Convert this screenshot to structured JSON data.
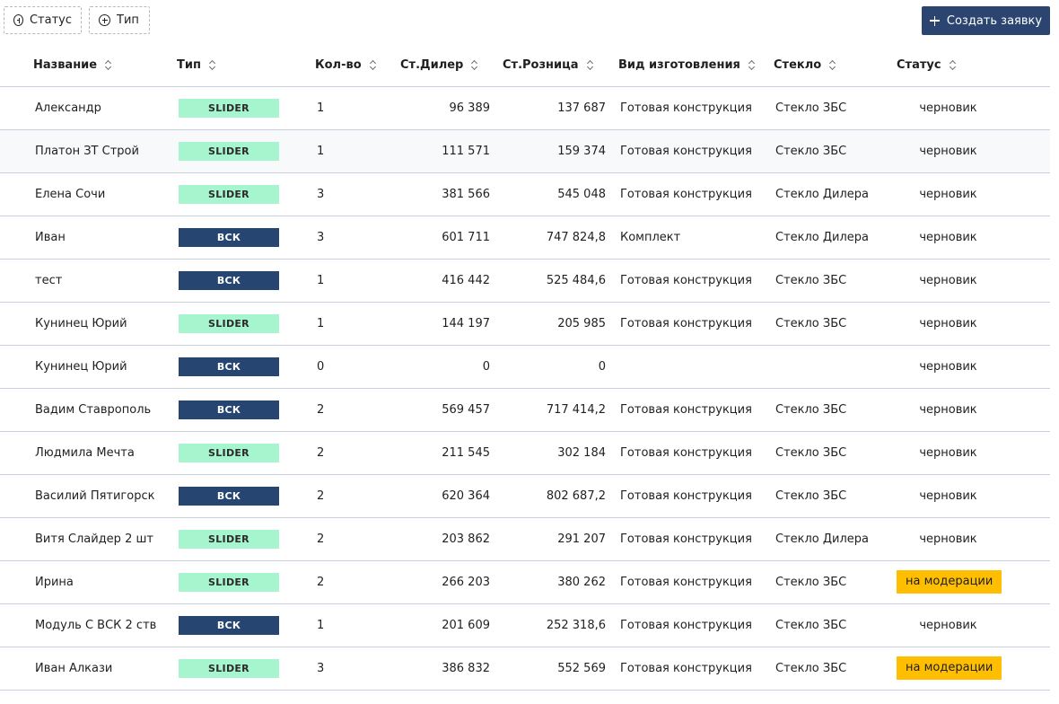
{
  "toolbar": {
    "filter_status_label": "Статус",
    "filter_type_label": "Тип",
    "create_label": "Создать заявку"
  },
  "columns": {
    "name": "Название",
    "type": "Тип",
    "qty": "Кол-во",
    "dealer": "Ст.Дилер",
    "retail": "Ст.Розница",
    "kind": "Вид изготовления",
    "glass": "Стекло",
    "status": "Статус"
  },
  "rows": [
    {
      "name": "Александр",
      "type": "SLIDER",
      "qty": "1",
      "dealer": "96 389",
      "retail": "137 687",
      "kind": "Готовая конструкция",
      "glass": "Стекло ЗБС",
      "status": "черновик"
    },
    {
      "name": "Платон ЗТ Строй",
      "type": "SLIDER",
      "qty": "1",
      "dealer": "111 571",
      "retail": "159 374",
      "kind": "Готовая конструкция",
      "glass": "Стекло ЗБС",
      "status": "черновик"
    },
    {
      "name": "Елена Сочи",
      "type": "SLIDER",
      "qty": "3",
      "dealer": "381 566",
      "retail": "545 048",
      "kind": "Готовая конструкция",
      "glass": "Стекло Дилера",
      "status": "черновик"
    },
    {
      "name": "Иван",
      "type": "ВСК",
      "qty": "3",
      "dealer": "601 711",
      "retail": "747 824,8",
      "kind": "Комплект",
      "glass": "Стекло Дилера",
      "status": "черновик"
    },
    {
      "name": "тест",
      "type": "ВСК",
      "qty": "1",
      "dealer": "416 442",
      "retail": "525 484,6",
      "kind": "Готовая конструкция",
      "glass": "Стекло ЗБС",
      "status": "черновик"
    },
    {
      "name": "Кунинец Юрий",
      "type": "SLIDER",
      "qty": "1",
      "dealer": "144 197",
      "retail": "205 985",
      "kind": "Готовая конструкция",
      "glass": "Стекло ЗБС",
      "status": "черновик"
    },
    {
      "name": "Кунинец Юрий",
      "type": "ВСК",
      "qty": "0",
      "dealer": "0",
      "retail": "0",
      "kind": "",
      "glass": "",
      "status": "черновик"
    },
    {
      "name": "Вадим Ставрополь",
      "type": "ВСК",
      "qty": "2",
      "dealer": "569 457",
      "retail": "717 414,2",
      "kind": "Готовая конструкция",
      "glass": "Стекло ЗБС",
      "status": "черновик"
    },
    {
      "name": "Людмила Мечта",
      "type": "SLIDER",
      "qty": "2",
      "dealer": "211 545",
      "retail": "302 184",
      "kind": "Готовая конструкция",
      "glass": "Стекло ЗБС",
      "status": "черновик"
    },
    {
      "name": "Василий Пятигорск",
      "type": "ВСК",
      "qty": "2",
      "dealer": "620 364",
      "retail": "802 687,2",
      "kind": "Готовая конструкция",
      "glass": "Стекло ЗБС",
      "status": "черновик"
    },
    {
      "name": "Витя Слайдер 2 шт",
      "type": "SLIDER",
      "qty": "2",
      "dealer": "203 862",
      "retail": "291 207",
      "kind": "Готовая конструкция",
      "glass": "Стекло Дилера",
      "status": "черновик"
    },
    {
      "name": "Ирина",
      "type": "SLIDER",
      "qty": "2",
      "dealer": "266 203",
      "retail": "380 262",
      "kind": "Готовая конструкция",
      "glass": "Стекло ЗБС",
      "status": "на модерации"
    },
    {
      "name": "Модуль С ВСК 2 ств",
      "type": "ВСК",
      "qty": "1",
      "dealer": "201 609",
      "retail": "252 318,6",
      "kind": "Готовая конструкция",
      "glass": "Стекло ЗБС",
      "status": "черновик"
    },
    {
      "name": "Иван Алкази",
      "type": "SLIDER",
      "qty": "3",
      "dealer": "386 832",
      "retail": "552 569",
      "kind": "Готовая конструкция",
      "glass": "Стекло ЗБС",
      "status": "на модерации"
    }
  ],
  "colors": {
    "primary": "#2b4570",
    "slider_tag": "#a7f5cf",
    "vsk_tag": "#264671",
    "moderation": "#ffbf00"
  }
}
